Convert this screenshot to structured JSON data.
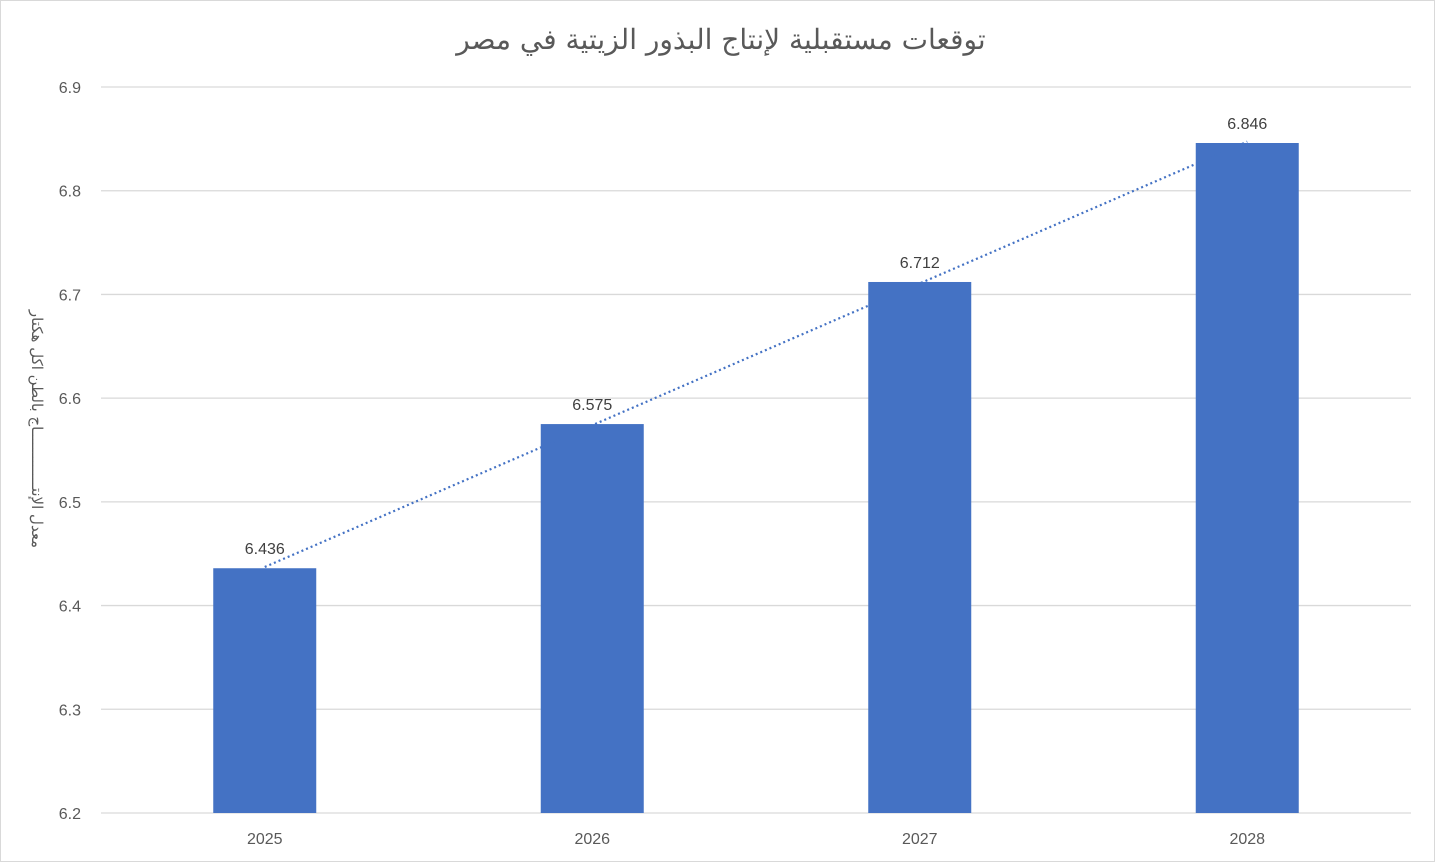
{
  "chart_data": {
    "type": "bar",
    "title": "توقعات مستقبلية لإنتاج البذور الزيتية في مصر",
    "xlabel": "",
    "ylabel": "معدل الإنتـــــــــــــاج بالطن اكل هكتار",
    "categories": [
      "2025",
      "2026",
      "2027",
      "2028"
    ],
    "values": [
      6.436,
      6.575,
      6.712,
      6.846
    ],
    "value_labels": [
      "6.436",
      "6.575",
      "6.712",
      "6.846"
    ],
    "ylim": [
      6.2,
      6.9
    ],
    "yticks": [
      "6.2",
      "6.3",
      "6.4",
      "6.5",
      "6.6",
      "6.7",
      "6.8",
      "6.9"
    ],
    "grid": true,
    "trendline": "linear",
    "colors": {
      "bar": "#4472c4",
      "trendline": "#4472c4",
      "grid": "#d9d9d9"
    }
  }
}
